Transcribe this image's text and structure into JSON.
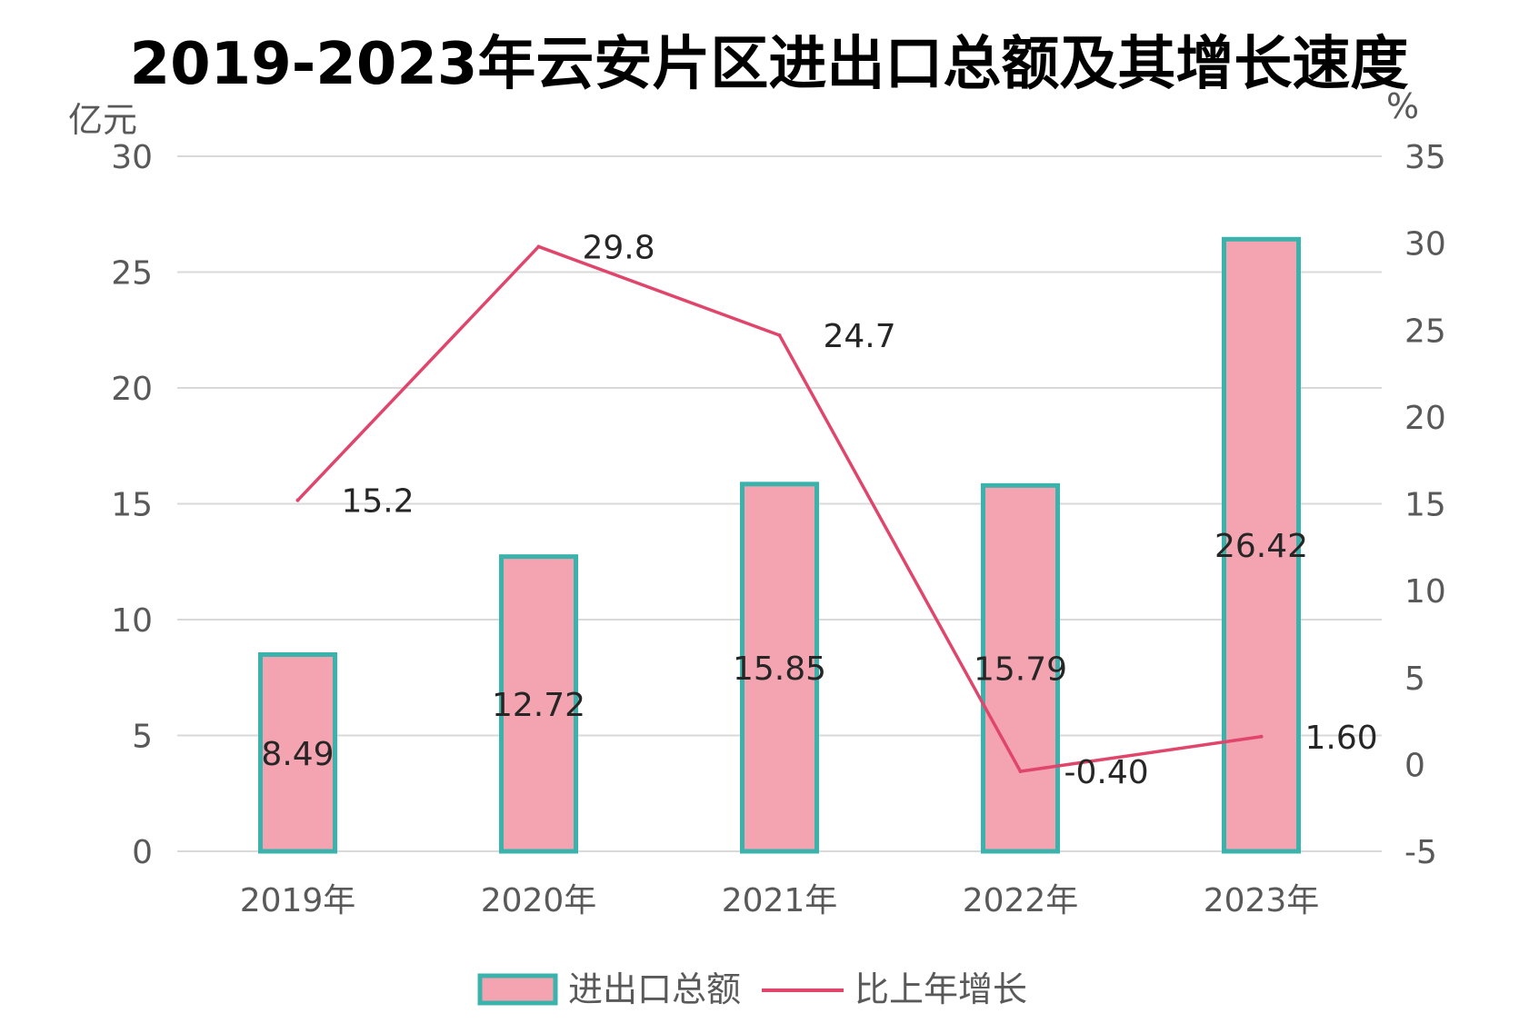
{
  "chart_data": {
    "type": "bar",
    "title": "2019-2023年云安片区进出口总额及其增长速度",
    "y_left_unit": "亿元",
    "y_right_unit": "%",
    "categories": [
      "2019年",
      "2020年",
      "2021年",
      "2022年",
      "2023年"
    ],
    "y_left_lim": [
      0,
      30
    ],
    "y_left_ticks": [
      "0",
      "5",
      "10",
      "15",
      "20",
      "25",
      "30"
    ],
    "y_right_lim": [
      -5,
      35
    ],
    "y_right_ticks": [
      "-5",
      "0",
      "5",
      "10",
      "15",
      "20",
      "25",
      "30",
      "35"
    ],
    "grid": true,
    "legend_position": "bottom",
    "series": [
      {
        "name": "进出口总额",
        "type": "bar",
        "axis": "left",
        "values": [
          8.49,
          12.72,
          15.85,
          15.79,
          26.42
        ],
        "labels": [
          "8.49",
          "12.72",
          "15.85",
          "15.79",
          "26.42"
        ],
        "fill": "#f4a3b1",
        "stroke": "#3bb3ad"
      },
      {
        "name": "比上年增长",
        "type": "line",
        "axis": "right",
        "values": [
          15.2,
          29.8,
          24.7,
          -0.4,
          1.6
        ],
        "labels": [
          "15.2",
          "29.8",
          "24.7",
          "-0.40",
          "1.60"
        ],
        "color": "#e0456b"
      }
    ]
  }
}
